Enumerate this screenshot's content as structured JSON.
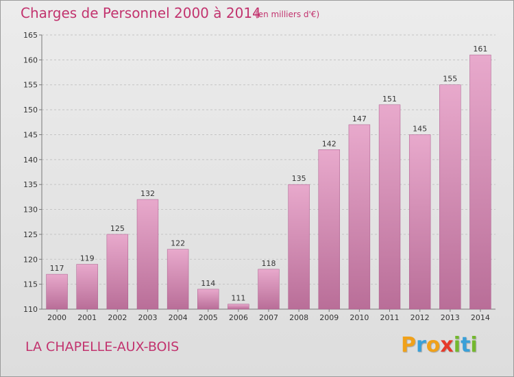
{
  "title": "Charges de Personnel 2000 à 2014",
  "subtitle": "(en milliers d'€)",
  "location": "LA CHAPELLE-AUX-BOIS",
  "brand": {
    "letters": [
      "P",
      "r",
      "o",
      "x",
      "i",
      "t",
      "i"
    ],
    "colors": [
      "#f0a11a",
      "#3aa0d8",
      "#f0a11a",
      "#e63a2a",
      "#74b82e",
      "#3aa0d8",
      "#74b82e"
    ]
  },
  "colors": {
    "accent": "#c2336e",
    "bar_top": "#e8a9cc",
    "bar_bottom": "#b96e98"
  },
  "chart_data": {
    "type": "bar",
    "categories": [
      "2000",
      "2001",
      "2002",
      "2003",
      "2004",
      "2005",
      "2006",
      "2007",
      "2008",
      "2009",
      "2010",
      "2011",
      "2012",
      "2013",
      "2014"
    ],
    "values": [
      117,
      119,
      125,
      132,
      122,
      114,
      111,
      118,
      135,
      142,
      147,
      151,
      145,
      155,
      161
    ],
    "ylim": [
      110,
      165
    ],
    "yticks": [
      110,
      115,
      120,
      125,
      130,
      135,
      140,
      145,
      150,
      155,
      160,
      165
    ],
    "grid": true,
    "data_labels": true
  }
}
